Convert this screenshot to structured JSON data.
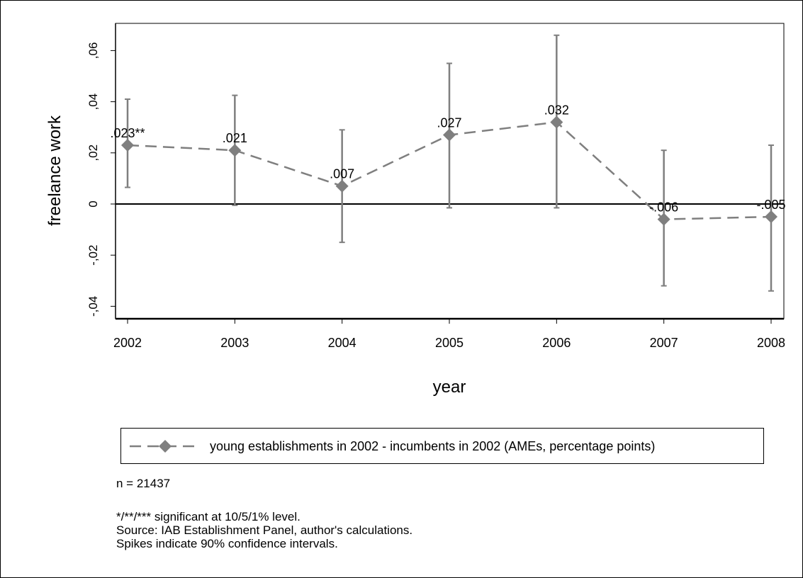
{
  "chart_data": {
    "type": "line",
    "xlabel": "year",
    "ylabel": "freelance work",
    "x": [
      2002,
      2003,
      2004,
      2005,
      2006,
      2007,
      2008
    ],
    "xticks": [
      "2002",
      "2003",
      "2004",
      "2005",
      "2006",
      "2007",
      "2008"
    ],
    "yticks": [
      {
        "value": -0.04,
        "label": "-,04"
      },
      {
        "value": -0.02,
        "label": "-,02"
      },
      {
        "value": 0,
        "label": "0"
      },
      {
        "value": 0.02,
        "label": ",02"
      },
      {
        "value": 0.04,
        "label": ",04"
      },
      {
        "value": 0.06,
        "label": ",06"
      }
    ],
    "ylim": [
      -0.045,
      0.07
    ],
    "series": [
      {
        "name": "young establishments in 2002 - incumbents in 2002 (AMEs, percentage points)",
        "values": [
          0.023,
          0.021,
          0.007,
          0.027,
          0.032,
          -0.006,
          -0.005
        ],
        "ci_low": [
          0.0065,
          -0.0005,
          -0.015,
          -0.0015,
          -0.0015,
          -0.032,
          -0.034
        ],
        "ci_high": [
          0.041,
          0.0425,
          0.029,
          0.055,
          0.066,
          0.021,
          0.023
        ],
        "data_labels": [
          ".023**",
          ".021",
          ".007",
          ".027",
          ".032",
          "-.006",
          "-.005"
        ],
        "color": "#7f7f7f",
        "line_style": "dashed",
        "marker": "diamond"
      }
    ],
    "reference_line": {
      "y": 0,
      "color": "#000000"
    },
    "legend_placement": "below",
    "grid": false
  },
  "notes": {
    "n": "n = 21437",
    "significance": "*/**/*** significant at 10/5/1% level.",
    "source": "Source: IAB Establishment Panel, author's calculations.",
    "spikes": "Spikes indicate 90% confidence intervals."
  }
}
